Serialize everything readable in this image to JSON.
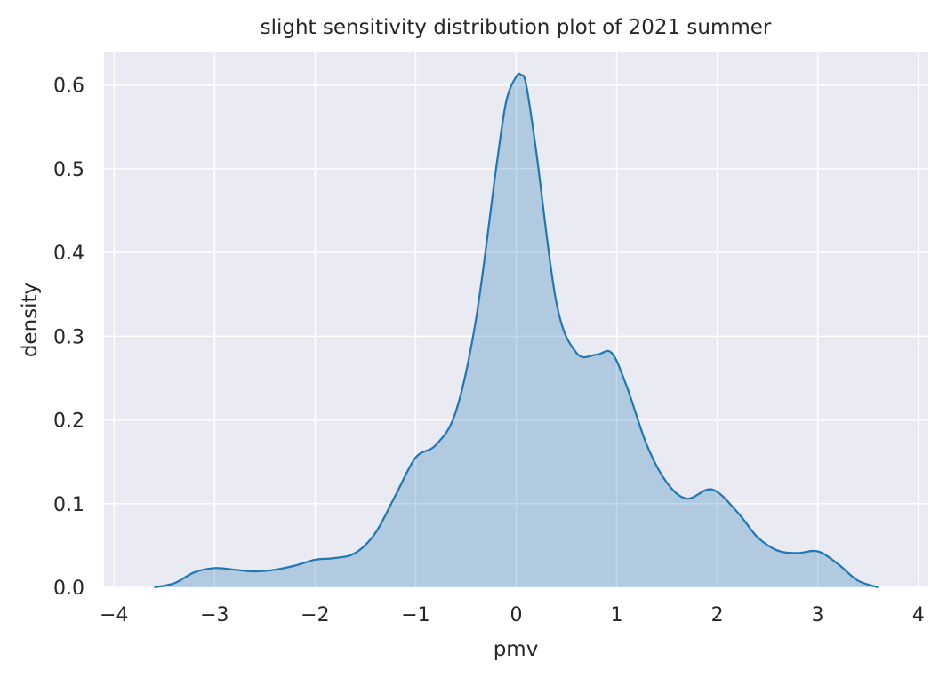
{
  "chart_data": {
    "type": "area",
    "title": "slight sensitivity distribution plot of 2021 summer",
    "xlabel": "pmv",
    "ylabel": "density",
    "xlim": [
      -4.1,
      4.1
    ],
    "ylim": [
      0,
      0.64
    ],
    "x_ticks": [
      -4,
      -3,
      -2,
      -1,
      0,
      1,
      2,
      3,
      4
    ],
    "x_tick_labels": [
      "−4",
      "−3",
      "−2",
      "−1",
      "0",
      "1",
      "2",
      "3",
      "4"
    ],
    "y_ticks": [
      0.0,
      0.1,
      0.2,
      0.3,
      0.4,
      0.5,
      0.6
    ],
    "y_tick_labels": [
      "0.0",
      "0.1",
      "0.2",
      "0.3",
      "0.4",
      "0.5",
      "0.6"
    ],
    "grid": true,
    "legend": "none",
    "series": [
      {
        "line_color": "#1f77b4",
        "fill_color": "#1f77b4",
        "fill_opacity": 0.28,
        "x": [
          -3.6,
          -3.4,
          -3.2,
          -3.0,
          -2.8,
          -2.6,
          -2.4,
          -2.2,
          -2.0,
          -1.8,
          -1.6,
          -1.4,
          -1.2,
          -1.0,
          -0.8,
          -0.6,
          -0.4,
          -0.2,
          -0.1,
          0.0,
          0.05,
          0.1,
          0.2,
          0.4,
          0.6,
          0.8,
          0.95,
          1.1,
          1.3,
          1.5,
          1.7,
          1.95,
          2.2,
          2.4,
          2.6,
          2.8,
          3.0,
          3.2,
          3.4,
          3.6
        ],
        "y": [
          0.0,
          0.005,
          0.018,
          0.023,
          0.021,
          0.019,
          0.021,
          0.026,
          0.033,
          0.035,
          0.041,
          0.065,
          0.11,
          0.155,
          0.17,
          0.21,
          0.32,
          0.5,
          0.58,
          0.61,
          0.612,
          0.6,
          0.52,
          0.34,
          0.28,
          0.278,
          0.28,
          0.24,
          0.17,
          0.125,
          0.106,
          0.117,
          0.09,
          0.06,
          0.044,
          0.041,
          0.043,
          0.028,
          0.008,
          0.0
        ]
      }
    ]
  }
}
